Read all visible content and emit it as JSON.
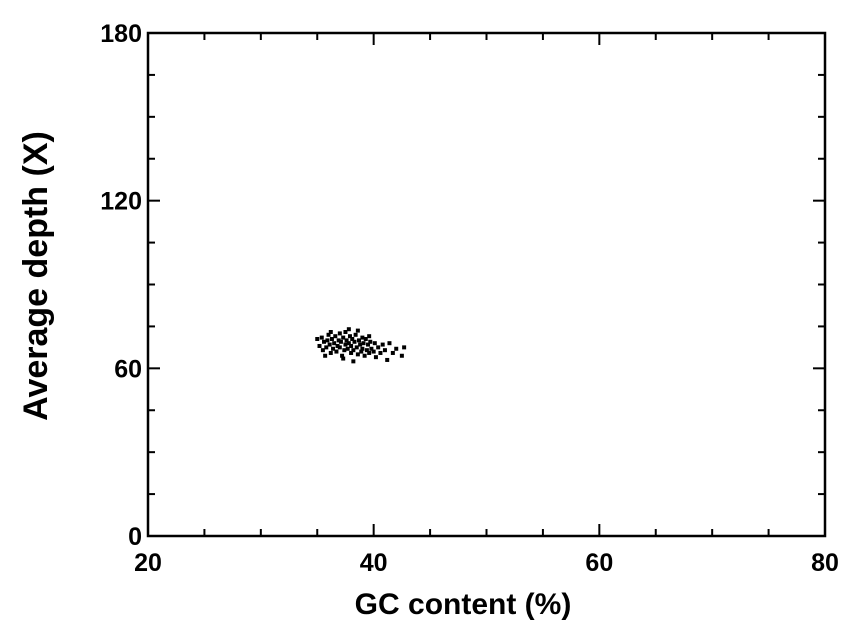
{
  "chart_data": {
    "type": "scatter",
    "title": "",
    "xlabel": "GC content (%)",
    "ylabel": "Average depth (X)",
    "xlim": [
      20,
      80
    ],
    "ylim": [
      0,
      180
    ],
    "x_ticks": [
      20,
      40,
      60,
      80
    ],
    "x_tick_labels": [
      "20",
      "40",
      "60",
      "80"
    ],
    "y_ticks": [
      0,
      60,
      120,
      180
    ],
    "y_tick_labels": [
      "0",
      "60",
      "120",
      "180"
    ],
    "grid": false,
    "legend": "none",
    "marker_color": "#000000",
    "series": [
      {
        "points": [
          [
            35.0,
            70.5
          ],
          [
            35.2,
            68.0
          ],
          [
            35.4,
            71.0
          ],
          [
            35.5,
            66.5
          ],
          [
            35.6,
            69.5
          ],
          [
            35.8,
            67.5
          ],
          [
            35.9,
            70.0
          ],
          [
            36.0,
            72.0
          ],
          [
            36.1,
            68.5
          ],
          [
            36.2,
            65.5
          ],
          [
            36.3,
            70.5
          ],
          [
            36.4,
            67.0
          ],
          [
            36.5,
            69.0
          ],
          [
            36.6,
            71.5
          ],
          [
            36.7,
            66.0
          ],
          [
            36.8,
            68.0
          ],
          [
            36.9,
            70.0
          ],
          [
            37.0,
            72.5
          ],
          [
            37.0,
            67.5
          ],
          [
            37.1,
            69.5
          ],
          [
            37.2,
            64.5
          ],
          [
            37.3,
            71.0
          ],
          [
            37.4,
            66.5
          ],
          [
            37.5,
            68.5
          ],
          [
            37.5,
            73.0
          ],
          [
            37.6,
            70.0
          ],
          [
            37.7,
            67.0
          ],
          [
            37.8,
            69.0
          ],
          [
            37.9,
            71.5
          ],
          [
            38.0,
            65.5
          ],
          [
            38.0,
            68.0
          ],
          [
            38.1,
            70.5
          ],
          [
            38.2,
            66.5
          ],
          [
            38.3,
            69.5
          ],
          [
            38.4,
            72.0
          ],
          [
            38.5,
            67.5
          ],
          [
            38.6,
            65.0
          ],
          [
            38.7,
            70.0
          ],
          [
            38.8,
            68.5
          ],
          [
            38.9,
            66.0
          ],
          [
            39.0,
            71.0
          ],
          [
            39.0,
            67.0
          ],
          [
            39.1,
            69.0
          ],
          [
            39.2,
            64.5
          ],
          [
            39.3,
            70.5
          ],
          [
            39.4,
            66.5
          ],
          [
            39.5,
            68.5
          ],
          [
            39.6,
            65.5
          ],
          [
            39.7,
            69.5
          ],
          [
            39.8,
            67.0
          ],
          [
            40.0,
            66.0
          ],
          [
            40.1,
            69.0
          ],
          [
            40.2,
            64.0
          ],
          [
            40.4,
            67.5
          ],
          [
            40.6,
            65.5
          ],
          [
            40.8,
            68.5
          ],
          [
            41.0,
            66.5
          ],
          [
            41.2,
            63.0
          ],
          [
            41.4,
            69.0
          ],
          [
            41.7,
            65.5
          ],
          [
            42.0,
            67.0
          ],
          [
            42.5,
            64.5
          ],
          [
            42.7,
            67.5
          ],
          [
            36.2,
            73.0
          ],
          [
            38.6,
            73.5
          ],
          [
            37.3,
            63.5
          ],
          [
            39.6,
            71.5
          ],
          [
            35.7,
            64.5
          ],
          [
            38.2,
            62.5
          ],
          [
            37.8,
            74.0
          ]
        ]
      }
    ]
  }
}
